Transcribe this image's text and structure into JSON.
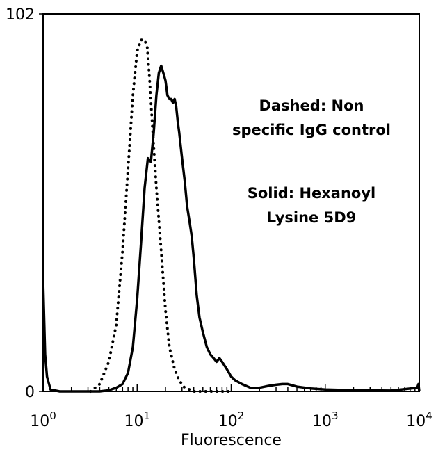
{
  "chart_data": {
    "type": "line",
    "title": "",
    "xlabel": "Fluorescence",
    "ylabel": "",
    "x_scale": "log",
    "xlim": [
      1,
      10000
    ],
    "ylim": [
      0,
      102
    ],
    "x_ticks": [
      {
        "base": "10",
        "exp": "0",
        "value": 1
      },
      {
        "base": "10",
        "exp": "1",
        "value": 10
      },
      {
        "base": "10",
        "exp": "2",
        "value": 100
      },
      {
        "base": "10",
        "exp": "3",
        "value": 1000
      },
      {
        "base": "10",
        "exp": "4",
        "value": 10000
      }
    ],
    "y_ticks": [
      {
        "label": "0",
        "value": 0
      },
      {
        "label": "102",
        "value": 102
      }
    ],
    "grid": false,
    "legend": "none",
    "annotations": [
      {
        "lines": [
          "Dashed: Non",
          "specific IgG control"
        ]
      },
      {
        "lines": [
          "Solid: Hexanoyl",
          "Lysine 5D9"
        ]
      }
    ],
    "series": [
      {
        "style": "dotted",
        "color": "#000000",
        "x": [
          3.2,
          4,
          5,
          6,
          7,
          8,
          9,
          10,
          11,
          12,
          12.8,
          13.5,
          14.5,
          16,
          18,
          20,
          22,
          25,
          28,
          32,
          36,
          40,
          50,
          60,
          80,
          100
        ],
        "y": [
          0,
          2,
          8,
          18,
          38,
          60,
          80,
          92,
          95,
          95,
          93,
          85,
          72,
          55,
          38,
          22,
          12,
          6,
          3,
          1,
          0.5,
          0,
          0,
          0,
          0,
          0
        ]
      },
      {
        "style": "solid",
        "color": "#000000",
        "x": [
          1,
          1.05,
          1.1,
          1.2,
          1.5,
          2,
          3,
          4,
          5,
          6,
          7,
          8,
          9,
          10,
          11,
          12,
          13,
          14,
          15,
          16,
          17,
          18,
          19,
          20,
          21,
          22,
          23,
          24,
          25,
          26,
          27,
          28,
          30,
          32,
          34,
          36,
          38,
          40,
          43,
          46,
          50,
          55,
          60,
          65,
          70,
          75,
          80,
          90,
          100,
          110,
          130,
          160,
          200,
          250,
          300,
          350,
          400,
          500,
          700,
          1000,
          2000,
          5000,
          9500,
          9800,
          10000
        ],
        "y": [
          30,
          10,
          4,
          0.5,
          0,
          0,
          0,
          0,
          0.3,
          1,
          2,
          5,
          12,
          25,
          40,
          55,
          63,
          62,
          70,
          80,
          86,
          88,
          86,
          84,
          80,
          79,
          79,
          78,
          79,
          77,
          73,
          70,
          63,
          57,
          50,
          46,
          42,
          36,
          26,
          20,
          16,
          12,
          10,
          9,
          8,
          9,
          8,
          6,
          4,
          3,
          2,
          1,
          1,
          1.5,
          1.8,
          2,
          2,
          1.3,
          0.8,
          0.5,
          0.3,
          0.2,
          1,
          2,
          0
        ]
      }
    ]
  }
}
